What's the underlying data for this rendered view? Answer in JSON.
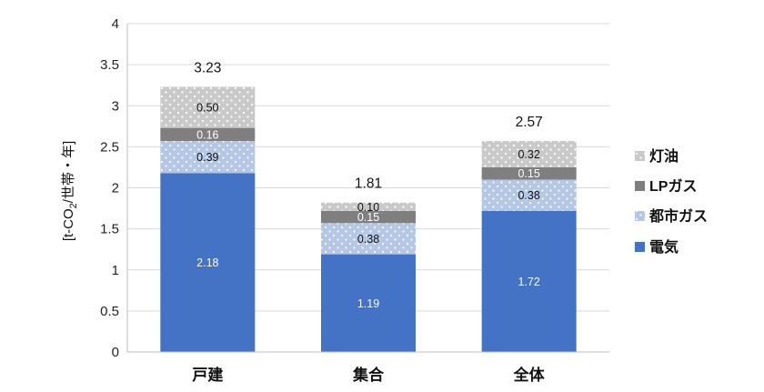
{
  "chart_data": {
    "type": "bar",
    "stacked": true,
    "categories": [
      "戸建",
      "集合",
      "全体"
    ],
    "series": [
      {
        "name": "電気",
        "values": [
          2.18,
          1.19,
          1.72
        ],
        "labels": [
          "2.18",
          "1.19",
          "1.72"
        ],
        "color": "#4472C4",
        "pattern": "solid"
      },
      {
        "name": "都市ガス",
        "values": [
          0.39,
          0.38,
          0.38
        ],
        "labels": [
          "0.39",
          "0.38",
          "0.38"
        ],
        "color": "#B4C7E7",
        "pattern": "dots"
      },
      {
        "name": "LPガス",
        "values": [
          0.16,
          0.15,
          0.15
        ],
        "labels": [
          "0.16",
          "0.15",
          "0.15"
        ],
        "color": "#7F7F7F",
        "pattern": "solid"
      },
      {
        "name": "灯油",
        "values": [
          0.5,
          0.1,
          0.32
        ],
        "labels": [
          "0.50",
          "0.10",
          "0.32"
        ],
        "color": "#C9C9C9",
        "pattern": "dots"
      }
    ],
    "totals": [
      "3.23",
      "1.81",
      "2.57"
    ],
    "ylim": [
      0,
      4
    ],
    "yticks": [
      "0",
      "0.5",
      "1",
      "1.5",
      "2",
      "2.5",
      "3",
      "3.5",
      "4"
    ],
    "ylabel_parts": [
      "[t-CO",
      "2",
      "/世帯・年]"
    ],
    "grid": true,
    "legend_position": "right"
  }
}
